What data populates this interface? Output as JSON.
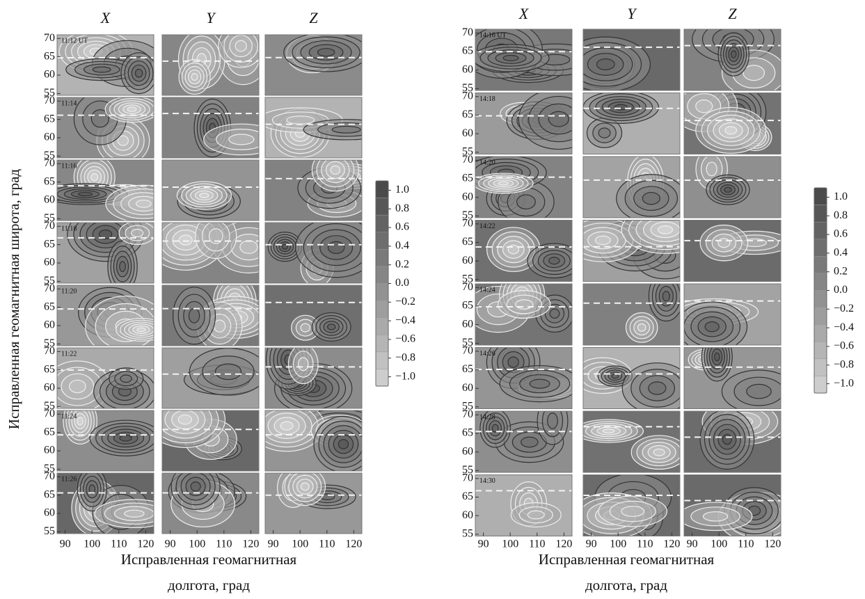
{
  "chart_data": [
    {
      "type": "contour-grid",
      "columns": [
        "X",
        "Y",
        "Z"
      ],
      "times": [
        "11:12 UT",
        "11:14",
        "11:16",
        "11:18",
        "11:20",
        "11:22",
        "11:24",
        "11:26"
      ],
      "xlim": [
        87,
        123
      ],
      "xticks": [
        90,
        100,
        110,
        120
      ],
      "ylim": [
        54.5,
        71
      ],
      "yticks": [
        55,
        60,
        65,
        70
      ],
      "y_label": "Исправленная геомагнитная широта, град",
      "x_label": [
        "Исправленная геомагнитная",
        "долгота, град"
      ],
      "clim": [
        -1.1,
        1.1
      ],
      "colorbar_ticks": [
        {
          "value": 1.0,
          "label": "1.0"
        },
        {
          "value": 0.8,
          "label": "0.8"
        },
        {
          "value": 0.6,
          "label": "0.6"
        },
        {
          "value": 0.4,
          "label": "0.4"
        },
        {
          "value": 0.2,
          "label": "0.2"
        },
        {
          "value": 0.0,
          "label": "0.0"
        },
        {
          "value": -0.2,
          "label": "−0.2"
        },
        {
          "value": -0.4,
          "label": "−0.4"
        },
        {
          "value": -0.6,
          "label": "−0.6"
        },
        {
          "value": -0.8,
          "label": "−0.8"
        },
        {
          "value": -1.0,
          "label": "−1.0"
        }
      ]
    },
    {
      "type": "contour-grid",
      "columns": [
        "X",
        "Y",
        "Z"
      ],
      "times": [
        "14:16 UT",
        "14:18",
        "14:20",
        "14:22",
        "14:24",
        "14:26",
        "14:28",
        "14:30"
      ],
      "xlim": [
        87,
        123
      ],
      "xticks": [
        90,
        100,
        110,
        120
      ],
      "ylim": [
        54.5,
        71
      ],
      "yticks": [
        55,
        60,
        65,
        70
      ],
      "x_label": [
        "Исправленная геомагнитная",
        "долгота, град"
      ],
      "clim": [
        -1.1,
        1.1
      ],
      "colorbar_ticks": [
        {
          "value": 1.0,
          "label": "1.0"
        },
        {
          "value": 0.8,
          "label": "0.8"
        },
        {
          "value": 0.6,
          "label": "0.6"
        },
        {
          "value": 0.4,
          "label": "0.4"
        },
        {
          "value": 0.2,
          "label": "0.2"
        },
        {
          "value": 0.0,
          "label": "0.0"
        },
        {
          "value": -0.2,
          "label": "−0.2"
        },
        {
          "value": -0.4,
          "label": "−0.4"
        },
        {
          "value": -0.6,
          "label": "−0.6"
        },
        {
          "value": -0.8,
          "label": "−0.8"
        },
        {
          "value": -1.0,
          "label": "−1.0"
        }
      ]
    }
  ]
}
